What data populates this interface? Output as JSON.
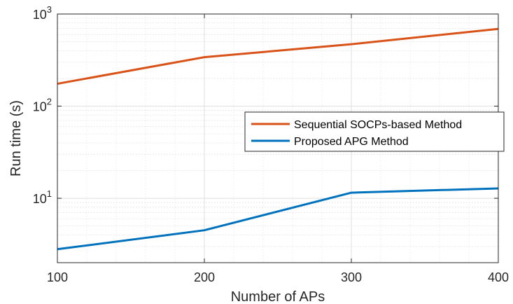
{
  "chart_data": {
    "type": "line",
    "x": [
      100,
      200,
      300,
      400
    ],
    "series": [
      {
        "name": "Sequential SOCPs-based Method",
        "values": [
          175,
          340,
          470,
          690
        ],
        "color": "#D95319"
      },
      {
        "name": "Proposed APG Method",
        "values": [
          2.8,
          4.5,
          11.5,
          12.8
        ],
        "color": "#0072BD"
      }
    ],
    "xlabel": "Number of APs",
    "ylabel": "Run time (s)",
    "xlim": [
      100,
      400
    ],
    "ylim": [
      2,
      1000
    ],
    "yscale": "log",
    "xticks": [
      "100",
      "200",
      "300",
      "400"
    ],
    "yticks": [
      {
        "value": 10,
        "base": "10",
        "exp": "1"
      },
      {
        "value": 100,
        "base": "10",
        "exp": "2"
      },
      {
        "value": 1000,
        "base": "10",
        "exp": "3"
      }
    ],
    "grid": true,
    "minor_grid": true,
    "legend_position": "center-right"
  }
}
